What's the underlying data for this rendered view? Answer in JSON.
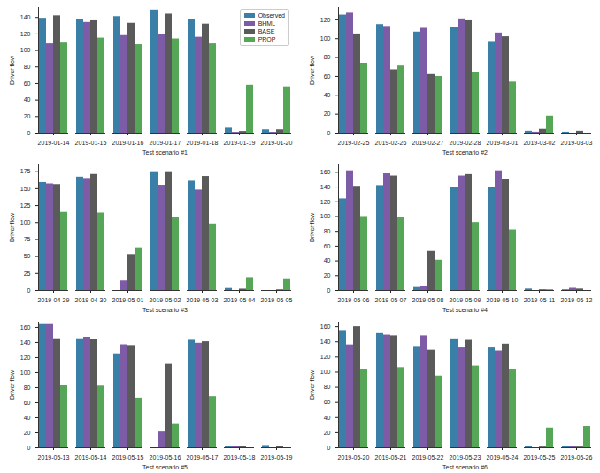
{
  "chart_data": [
    {
      "type": "bar",
      "x_label": "Test scenario #1",
      "y_label": "Driver flow",
      "categories": [
        "2019-01-14",
        "2019-01-15",
        "2019-01-16",
        "2019-01-17",
        "2019-01-18",
        "2019-01-19",
        "2019-01-20"
      ],
      "series": [
        {
          "name": "Observed",
          "color": "#3a7fa8",
          "values": [
            139,
            137,
            141,
            149,
            137,
            6,
            4
          ]
        },
        {
          "name": "BHML",
          "color": "#7e5ba6",
          "values": [
            108,
            134,
            118,
            119,
            116,
            1,
            1
          ]
        },
        {
          "name": "BASE",
          "color": "#5a5a5a",
          "values": [
            142,
            136,
            133,
            144,
            132,
            2,
            4
          ]
        },
        {
          "name": "PROP",
          "color": "#55a657",
          "values": [
            109,
            115,
            107,
            114,
            108,
            58,
            56
          ]
        }
      ],
      "ylim": [
        0,
        152
      ],
      "yticks": [
        0,
        20,
        40,
        60,
        80,
        100,
        120,
        140
      ],
      "grid": false,
      "legend": "upper right"
    },
    {
      "type": "bar",
      "x_label": "Test scenario #2",
      "y_label": "Driver flow",
      "categories": [
        "2019-02-25",
        "2019-02-26",
        "2019-02-27",
        "2019-02-28",
        "2019-03-01",
        "2019-03-02",
        "2019-03-03"
      ],
      "series": [
        {
          "name": "Observed",
          "color": "#3a7fa8",
          "values": [
            125,
            115,
            107,
            112,
            97,
            2,
            1
          ]
        },
        {
          "name": "BHML",
          "color": "#7e5ba6",
          "values": [
            127,
            113,
            111,
            121,
            106,
            1,
            0
          ]
        },
        {
          "name": "BASE",
          "color": "#5a5a5a",
          "values": [
            105,
            67,
            62,
            119,
            102,
            4,
            2
          ]
        },
        {
          "name": "PROP",
          "color": "#55a657",
          "values": [
            74,
            71,
            60,
            64,
            54,
            18,
            0
          ]
        }
      ],
      "ylim": [
        0,
        133
      ],
      "yticks": [
        0,
        20,
        40,
        60,
        80,
        100,
        120
      ],
      "grid": false
    },
    {
      "type": "bar",
      "x_label": "Test scenario #3",
      "y_label": "Driver flow",
      "categories": [
        "2019-04-29",
        "2019-04-30",
        "2019-05-01",
        "2019-05-02",
        "2019-05-03",
        "2019-05-04",
        "2019-05-05"
      ],
      "series": [
        {
          "name": "Observed",
          "color": "#3a7fa8",
          "values": [
            159,
            167,
            0,
            175,
            161,
            3,
            0
          ]
        },
        {
          "name": "BHML",
          "color": "#7e5ba6",
          "values": [
            157,
            165,
            14,
            155,
            148,
            0,
            0
          ]
        },
        {
          "name": "BASE",
          "color": "#5a5a5a",
          "values": [
            156,
            171,
            53,
            175,
            168,
            2,
            1
          ]
        },
        {
          "name": "PROP",
          "color": "#55a657",
          "values": [
            115,
            114,
            63,
            107,
            98,
            19,
            16
          ]
        }
      ],
      "ylim": [
        0,
        185
      ],
      "yticks": [
        0,
        25,
        50,
        75,
        100,
        125,
        150,
        175
      ],
      "grid": false
    },
    {
      "type": "bar",
      "x_label": "Test scenario #4",
      "y_label": "Driver flow",
      "categories": [
        "2019-05-06",
        "2019-05-07",
        "2019-05-08",
        "2019-05-09",
        "2019-05-10",
        "2019-05-11",
        "2019-05-12"
      ],
      "series": [
        {
          "name": "Observed",
          "color": "#3a7fa8",
          "values": [
            124,
            142,
            4,
            140,
            139,
            2,
            1
          ]
        },
        {
          "name": "BHML",
          "color": "#7e5ba6",
          "values": [
            162,
            158,
            6,
            155,
            162,
            0,
            3
          ]
        },
        {
          "name": "BASE",
          "color": "#5a5a5a",
          "values": [
            141,
            155,
            53,
            157,
            150,
            1,
            2
          ]
        },
        {
          "name": "PROP",
          "color": "#55a657",
          "values": [
            100,
            99,
            41,
            92,
            82,
            1,
            0
          ]
        }
      ],
      "ylim": [
        0,
        170
      ],
      "yticks": [
        0,
        20,
        40,
        60,
        80,
        100,
        120,
        140,
        160
      ],
      "grid": false
    },
    {
      "type": "bar",
      "x_label": "Test scenario #5",
      "y_label": "Driver flow",
      "categories": [
        "2019-05-13",
        "2019-05-14",
        "2019-05-15",
        "2019-05-16",
        "2019-05-17",
        "2019-05-18",
        "2019-05-19"
      ],
      "series": [
        {
          "name": "Observed",
          "color": "#3a7fa8",
          "values": [
            165,
            145,
            125,
            0,
            143,
            2,
            3
          ]
        },
        {
          "name": "BHML",
          "color": "#7e5ba6",
          "values": [
            165,
            147,
            137,
            21,
            139,
            2,
            0
          ]
        },
        {
          "name": "BASE",
          "color": "#5a5a5a",
          "values": [
            145,
            144,
            136,
            111,
            141,
            2,
            2
          ]
        },
        {
          "name": "PROP",
          "color": "#55a657",
          "values": [
            83,
            82,
            66,
            31,
            68,
            0,
            0
          ]
        }
      ],
      "ylim": [
        0,
        167
      ],
      "yticks": [
        0,
        20,
        40,
        60,
        80,
        100,
        120,
        140,
        160
      ],
      "grid": false
    },
    {
      "type": "bar",
      "x_label": "Test scenario #6",
      "y_label": "Driver flow",
      "categories": [
        "2019-05-20",
        "2019-05-21",
        "2019-05-22",
        "2019-05-23",
        "2019-05-24",
        "2019-05-25",
        "2019-05-26"
      ],
      "series": [
        {
          "name": "Observed",
          "color": "#3a7fa8",
          "values": [
            155,
            151,
            134,
            144,
            132,
            2,
            2
          ]
        },
        {
          "name": "BHML",
          "color": "#7e5ba6",
          "values": [
            136,
            149,
            148,
            132,
            128,
            0,
            2
          ]
        },
        {
          "name": "BASE",
          "color": "#5a5a5a",
          "values": [
            160,
            148,
            129,
            142,
            137,
            1,
            1
          ]
        },
        {
          "name": "PROP",
          "color": "#55a657",
          "values": [
            104,
            106,
            95,
            108,
            104,
            26,
            28
          ]
        }
      ],
      "ylim": [
        0,
        166
      ],
      "yticks": [
        0,
        20,
        40,
        60,
        80,
        100,
        120,
        140,
        160
      ],
      "grid": false
    }
  ]
}
